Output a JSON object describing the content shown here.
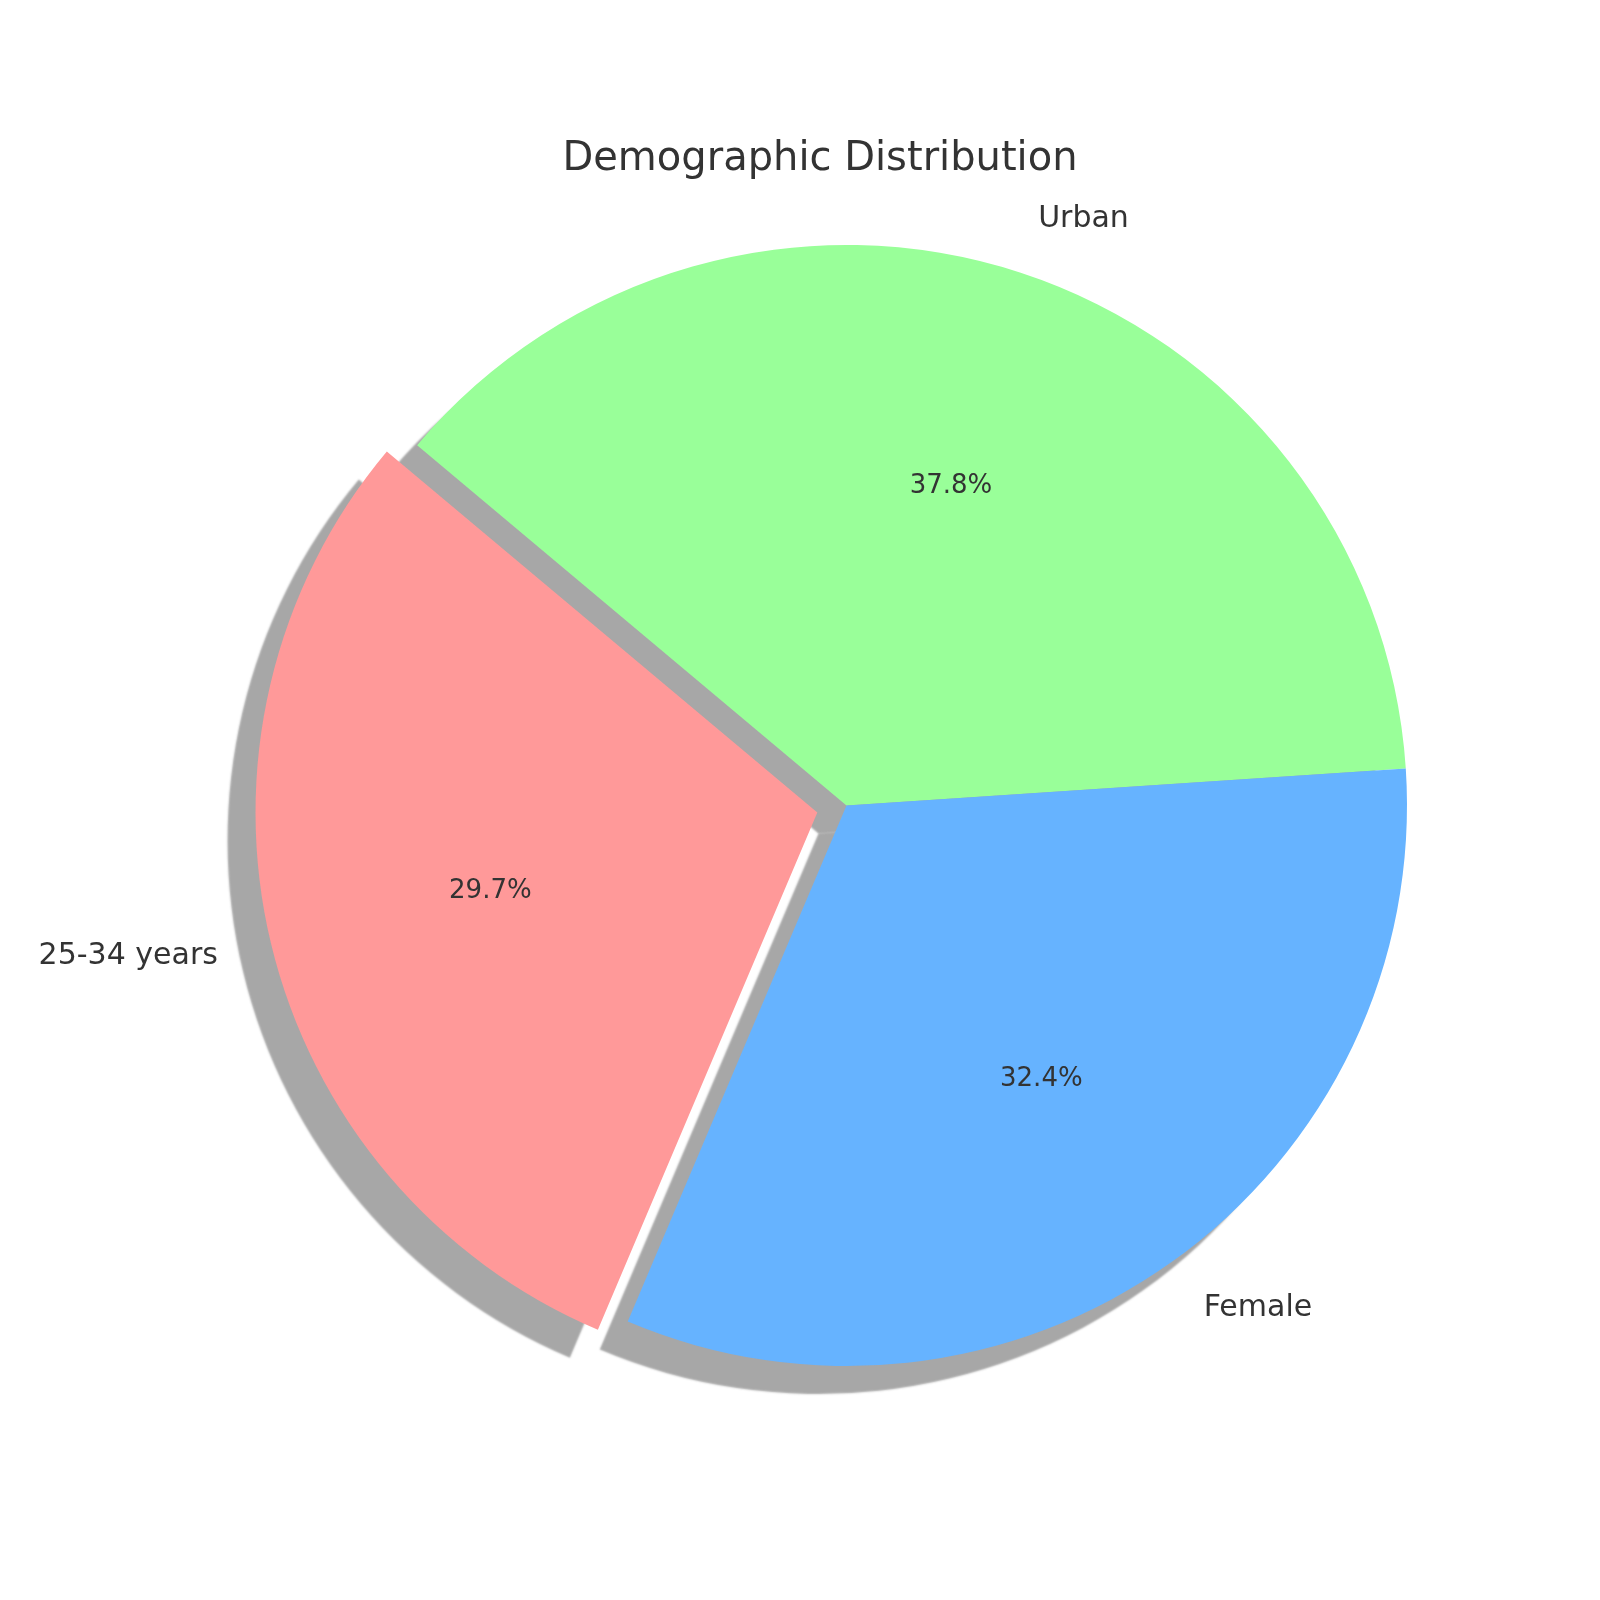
{
  "chart_data": {
    "type": "pie",
    "title": "Demographic Distribution",
    "categories": [
      "Urban",
      "Female",
      "25-34 years"
    ],
    "values": [
      37.8,
      32.4,
      29.7
    ],
    "value_labels": [
      "37.8%",
      "32.4%",
      "29.7%"
    ],
    "colors": [
      "#99ff99",
      "#66b3ff",
      "#ff9999"
    ],
    "data_labels": true
  }
}
